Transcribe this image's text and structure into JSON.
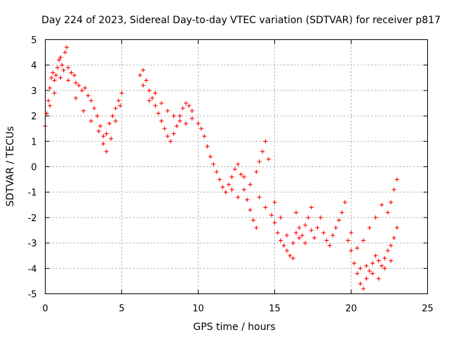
{
  "chart_data": {
    "type": "scatter",
    "title": "Day 224 of 2023, Sidereal Day-to-day VTEC variation (SDTVAR) for receiver p817",
    "xlabel": "GPS time / hours",
    "ylabel": "SDTVAR / TECUs",
    "xlim": [
      0,
      25
    ],
    "ylim": [
      -5,
      5
    ],
    "xticks": [
      0,
      5,
      10,
      15,
      20,
      25
    ],
    "yticks": [
      -5,
      -4,
      -3,
      -2,
      -1,
      0,
      1,
      2,
      3,
      4,
      5
    ],
    "grid": true,
    "marker": "+",
    "color": "#ff0000",
    "series": [
      {
        "name": "SDTVAR",
        "points": [
          [
            0.0,
            1.6
          ],
          [
            0.1,
            2.1
          ],
          [
            0.2,
            2.6
          ],
          [
            0.3,
            3.1
          ],
          [
            0.4,
            3.5
          ],
          [
            0.5,
            3.7
          ],
          [
            0.6,
            3.4
          ],
          [
            0.7,
            3.6
          ],
          [
            0.8,
            3.9
          ],
          [
            0.9,
            4.2
          ],
          [
            1.0,
            4.3
          ],
          [
            1.1,
            4.0
          ],
          [
            1.2,
            3.8
          ],
          [
            1.3,
            4.5
          ],
          [
            1.4,
            4.7
          ],
          [
            1.5,
            3.9
          ],
          [
            1.7,
            3.7
          ],
          [
            1.9,
            3.6
          ],
          [
            2.0,
            3.3
          ],
          [
            2.2,
            3.2
          ],
          [
            2.4,
            3.0
          ],
          [
            2.6,
            3.1
          ],
          [
            2.8,
            2.8
          ],
          [
            3.0,
            2.6
          ],
          [
            3.2,
            2.3
          ],
          [
            3.4,
            2.0
          ],
          [
            3.6,
            1.6
          ],
          [
            3.8,
            1.2
          ],
          [
            4.0,
            1.3
          ],
          [
            4.2,
            1.7
          ],
          [
            4.4,
            2.0
          ],
          [
            4.6,
            2.3
          ],
          [
            4.8,
            2.6
          ],
          [
            5.0,
            2.9
          ],
          [
            0.3,
            2.4
          ],
          [
            0.6,
            2.9
          ],
          [
            1.0,
            3.5
          ],
          [
            1.5,
            3.4
          ],
          [
            2.0,
            2.7
          ],
          [
            2.5,
            2.2
          ],
          [
            3.0,
            1.8
          ],
          [
            3.5,
            1.4
          ],
          [
            3.8,
            0.9
          ],
          [
            4.0,
            0.6
          ],
          [
            4.3,
            1.1
          ],
          [
            4.6,
            1.8
          ],
          [
            4.9,
            2.4
          ],
          [
            6.2,
            3.6
          ],
          [
            6.4,
            3.8
          ],
          [
            6.6,
            3.4
          ],
          [
            6.8,
            3.0
          ],
          [
            7.0,
            2.7
          ],
          [
            7.2,
            2.4
          ],
          [
            7.4,
            2.1
          ],
          [
            7.6,
            1.8
          ],
          [
            7.8,
            1.5
          ],
          [
            8.0,
            1.2
          ],
          [
            8.2,
            1.0
          ],
          [
            8.4,
            1.3
          ],
          [
            8.6,
            1.6
          ],
          [
            8.8,
            2.0
          ],
          [
            9.0,
            2.3
          ],
          [
            9.2,
            2.5
          ],
          [
            9.4,
            2.4
          ],
          [
            9.6,
            2.2
          ],
          [
            6.4,
            3.2
          ],
          [
            6.8,
            2.6
          ],
          [
            7.2,
            2.9
          ],
          [
            7.6,
            2.5
          ],
          [
            8.0,
            2.2
          ],
          [
            8.4,
            2.0
          ],
          [
            8.8,
            1.8
          ],
          [
            9.2,
            1.7
          ],
          [
            9.6,
            1.9
          ],
          [
            10.0,
            1.7
          ],
          [
            10.2,
            1.5
          ],
          [
            10.4,
            1.2
          ],
          [
            10.6,
            0.8
          ],
          [
            10.8,
            0.4
          ],
          [
            11.0,
            0.1
          ],
          [
            11.2,
            -0.2
          ],
          [
            11.4,
            -0.5
          ],
          [
            11.6,
            -0.8
          ],
          [
            11.8,
            -1.0
          ],
          [
            12.0,
            -0.7
          ],
          [
            12.2,
            -0.4
          ],
          [
            12.4,
            -0.1
          ],
          [
            12.6,
            0.1
          ],
          [
            12.8,
            -0.3
          ],
          [
            13.0,
            -0.9
          ],
          [
            13.2,
            -1.3
          ],
          [
            13.4,
            -1.7
          ],
          [
            13.6,
            -2.1
          ],
          [
            13.8,
            -2.4
          ],
          [
            12.2,
            -0.9
          ],
          [
            12.6,
            -1.2
          ],
          [
            13.0,
            -0.4
          ],
          [
            13.4,
            -0.7
          ],
          [
            13.8,
            -0.2
          ],
          [
            14.0,
            0.2
          ],
          [
            14.2,
            0.6
          ],
          [
            14.4,
            1.0
          ],
          [
            14.6,
            0.3
          ],
          [
            14.0,
            -1.2
          ],
          [
            14.4,
            -1.6
          ],
          [
            14.8,
            -1.9
          ],
          [
            15.0,
            -2.2
          ],
          [
            15.2,
            -2.6
          ],
          [
            15.4,
            -2.9
          ],
          [
            15.6,
            -3.1
          ],
          [
            15.8,
            -3.3
          ],
          [
            16.0,
            -3.5
          ],
          [
            16.2,
            -3.0
          ],
          [
            16.4,
            -2.6
          ],
          [
            16.6,
            -2.4
          ],
          [
            16.8,
            -2.7
          ],
          [
            17.0,
            -2.3
          ],
          [
            17.2,
            -2.0
          ],
          [
            17.4,
            -2.5
          ],
          [
            17.6,
            -2.8
          ],
          [
            17.8,
            -2.4
          ],
          [
            18.0,
            -2.0
          ],
          [
            15.0,
            -1.4
          ],
          [
            15.4,
            -2.0
          ],
          [
            15.8,
            -2.7
          ],
          [
            16.2,
            -3.6
          ],
          [
            16.4,
            -1.8
          ],
          [
            16.6,
            -2.8
          ],
          [
            17.0,
            -3.0
          ],
          [
            17.4,
            -1.6
          ],
          [
            18.2,
            -2.6
          ],
          [
            18.4,
            -2.9
          ],
          [
            18.6,
            -3.1
          ],
          [
            18.8,
            -2.7
          ],
          [
            19.0,
            -2.4
          ],
          [
            19.2,
            -2.1
          ],
          [
            19.4,
            -1.8
          ],
          [
            19.6,
            -1.4
          ],
          [
            19.8,
            -2.9
          ],
          [
            20.0,
            -3.3
          ],
          [
            20.2,
            -3.8
          ],
          [
            20.4,
            -4.2
          ],
          [
            20.6,
            -4.6
          ],
          [
            20.8,
            -4.8
          ],
          [
            21.0,
            -4.4
          ],
          [
            21.2,
            -4.1
          ],
          [
            21.4,
            -3.8
          ],
          [
            21.6,
            -3.5
          ],
          [
            21.8,
            -3.7
          ],
          [
            22.0,
            -3.9
          ],
          [
            22.2,
            -3.6
          ],
          [
            22.4,
            -3.3
          ],
          [
            22.6,
            -3.1
          ],
          [
            22.8,
            -2.8
          ],
          [
            23.0,
            -2.4
          ],
          [
            20.0,
            -2.6
          ],
          [
            20.4,
            -3.2
          ],
          [
            20.8,
            -2.9
          ],
          [
            21.2,
            -2.4
          ],
          [
            21.6,
            -2.0
          ],
          [
            22.0,
            -1.5
          ],
          [
            22.4,
            -1.8
          ],
          [
            22.6,
            -1.4
          ],
          [
            22.8,
            -0.9
          ],
          [
            23.0,
            -0.5
          ],
          [
            20.6,
            -4.0
          ],
          [
            21.0,
            -3.9
          ],
          [
            21.4,
            -4.2
          ],
          [
            21.8,
            -4.4
          ],
          [
            22.2,
            -4.0
          ],
          [
            22.6,
            -3.7
          ]
        ]
      }
    ]
  }
}
